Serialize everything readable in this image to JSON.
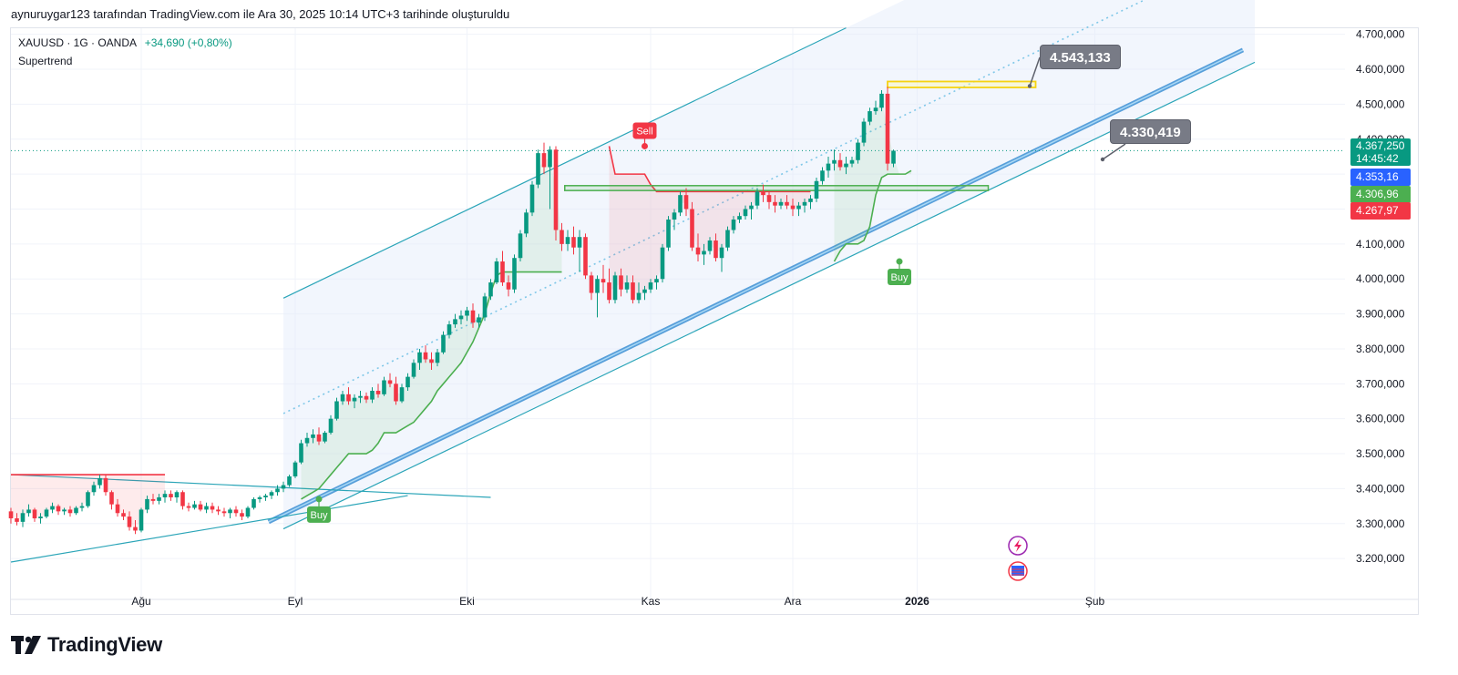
{
  "attribution": "aynuruygar123 tarafından TradingView.com ile Ara 30, 2025 10:14 UTC+3 tarihinde oluşturuldu",
  "legend": {
    "symbol": "XAUUSD · 1G · OANDA",
    "change": "+34,690 (+0,80%)",
    "indicator": "Supertrend"
  },
  "brand": "TradingView",
  "colors": {
    "up": "#089981",
    "down": "#f23645",
    "supertrend_up": "#4caf50",
    "supertrend_down": "#f23645",
    "channel": "#2ba5b8",
    "support_band": "#3d8fd4",
    "resistance_box": "#f5d312",
    "level_box": "#4caf50",
    "callout": "#787b86",
    "last_price_bg": "#089981",
    "tag_blue": "#2962ff",
    "tag_green": "#4caf50",
    "tag_red": "#f23645"
  },
  "price_tags": {
    "last_price": "4.367,250",
    "countdown": "14:45:42",
    "tag_blue": "4.353,16",
    "tag_green": "4.306,96",
    "tag_red": "4.267,97"
  },
  "callouts": {
    "upper": "4.543,133",
    "lower": "4.330,419"
  },
  "signals": {
    "buy1": "Buy",
    "sell": "Sell",
    "buy2": "Buy"
  },
  "chart_data": {
    "type": "candlestick",
    "title": "",
    "xlabel": "",
    "ylabel": "",
    "ylim": [
      3130000,
      4720000
    ],
    "y_ticks": [
      {
        "value": 3200000,
        "label": "3.200,000"
      },
      {
        "value": 3300000,
        "label": "3.300,000"
      },
      {
        "value": 3400000,
        "label": "3.400,000"
      },
      {
        "value": 3500000,
        "label": "3.500,000"
      },
      {
        "value": 3600000,
        "label": "3.600,000"
      },
      {
        "value": 3700000,
        "label": "3.700,000"
      },
      {
        "value": 3800000,
        "label": "3.800,000"
      },
      {
        "value": 3900000,
        "label": "3.900,000"
      },
      {
        "value": 4000000,
        "label": "4.000,000"
      },
      {
        "value": 4100000,
        "label": "4.100,000"
      },
      {
        "value": 4200000,
        "label": "4.200,000"
      },
      {
        "value": 4300000,
        "label": "4.300,000"
      },
      {
        "value": 4400000,
        "label": "4.400,000"
      },
      {
        "value": 4500000,
        "label": "4.500,000"
      },
      {
        "value": 4600000,
        "label": "4.600,000"
      },
      {
        "value": 4700000,
        "label": "4.700,000"
      }
    ],
    "x_ticks": [
      {
        "index": 22,
        "label": "Ağu",
        "bold": false
      },
      {
        "index": 48,
        "label": "Eyl",
        "bold": false
      },
      {
        "index": 77,
        "label": "Eki",
        "bold": false
      },
      {
        "index": 108,
        "label": "Kas",
        "bold": false
      },
      {
        "index": 132,
        "label": "Ara",
        "bold": false
      },
      {
        "index": 153,
        "label": "2026",
        "bold": true
      },
      {
        "index": 183,
        "label": "Şub",
        "bold": false
      }
    ],
    "candles": [
      [
        3335,
        3345,
        3300,
        3315
      ],
      [
        3315,
        3330,
        3295,
        3305
      ],
      [
        3305,
        3340,
        3290,
        3330
      ],
      [
        3330,
        3355,
        3320,
        3340
      ],
      [
        3340,
        3345,
        3305,
        3315
      ],
      [
        3315,
        3330,
        3300,
        3320
      ],
      [
        3320,
        3345,
        3315,
        3340
      ],
      [
        3340,
        3360,
        3330,
        3350
      ],
      [
        3350,
        3355,
        3325,
        3335
      ],
      [
        3335,
        3345,
        3325,
        3340
      ],
      [
        3340,
        3350,
        3320,
        3330
      ],
      [
        3330,
        3350,
        3325,
        3345
      ],
      [
        3345,
        3360,
        3335,
        3350
      ],
      [
        3350,
        3395,
        3345,
        3390
      ],
      [
        3390,
        3420,
        3380,
        3410
      ],
      [
        3410,
        3440,
        3400,
        3430
      ],
      [
        3430,
        3440,
        3380,
        3390
      ],
      [
        3390,
        3395,
        3340,
        3355
      ],
      [
        3355,
        3370,
        3320,
        3330
      ],
      [
        3330,
        3340,
        3310,
        3320
      ],
      [
        3320,
        3335,
        3280,
        3290
      ],
      [
        3290,
        3310,
        3270,
        3280
      ],
      [
        3280,
        3345,
        3275,
        3340
      ],
      [
        3340,
        3380,
        3330,
        3370
      ],
      [
        3370,
        3385,
        3355,
        3365
      ],
      [
        3365,
        3385,
        3355,
        3375
      ],
      [
        3375,
        3395,
        3360,
        3385
      ],
      [
        3385,
        3395,
        3365,
        3375
      ],
      [
        3375,
        3395,
        3360,
        3390
      ],
      [
        3390,
        3395,
        3340,
        3350
      ],
      [
        3350,
        3360,
        3335,
        3345
      ],
      [
        3345,
        3365,
        3340,
        3355
      ],
      [
        3355,
        3365,
        3335,
        3340
      ],
      [
        3340,
        3360,
        3330,
        3350
      ],
      [
        3350,
        3360,
        3330,
        3340
      ],
      [
        3340,
        3350,
        3325,
        3335
      ],
      [
        3335,
        3345,
        3320,
        3330
      ],
      [
        3330,
        3345,
        3315,
        3340
      ],
      [
        3340,
        3350,
        3320,
        3330
      ],
      [
        3330,
        3340,
        3310,
        3320
      ],
      [
        3320,
        3350,
        3315,
        3345
      ],
      [
        3345,
        3375,
        3340,
        3370
      ],
      [
        3370,
        3380,
        3360,
        3375
      ],
      [
        3375,
        3385,
        3365,
        3380
      ],
      [
        3380,
        3395,
        3370,
        3390
      ],
      [
        3390,
        3410,
        3380,
        3400
      ],
      [
        3400,
        3420,
        3390,
        3410
      ],
      [
        3410,
        3440,
        3405,
        3435
      ],
      [
        3435,
        3480,
        3430,
        3475
      ],
      [
        3475,
        3540,
        3470,
        3530
      ],
      [
        3530,
        3560,
        3520,
        3545
      ],
      [
        3545,
        3570,
        3530,
        3555
      ],
      [
        3555,
        3575,
        3525,
        3535
      ],
      [
        3535,
        3565,
        3530,
        3560
      ],
      [
        3560,
        3610,
        3555,
        3600
      ],
      [
        3600,
        3660,
        3595,
        3650
      ],
      [
        3650,
        3680,
        3640,
        3670
      ],
      [
        3670,
        3690,
        3640,
        3650
      ],
      [
        3650,
        3670,
        3630,
        3660
      ],
      [
        3660,
        3680,
        3645,
        3665
      ],
      [
        3665,
        3675,
        3645,
        3655
      ],
      [
        3655,
        3690,
        3645,
        3680
      ],
      [
        3680,
        3700,
        3660,
        3670
      ],
      [
        3670,
        3720,
        3665,
        3710
      ],
      [
        3710,
        3730,
        3690,
        3700
      ],
      [
        3700,
        3720,
        3640,
        3650
      ],
      [
        3650,
        3700,
        3645,
        3690
      ],
      [
        3690,
        3730,
        3680,
        3720
      ],
      [
        3720,
        3770,
        3715,
        3760
      ],
      [
        3760,
        3800,
        3740,
        3790
      ],
      [
        3790,
        3810,
        3760,
        3770
      ],
      [
        3770,
        3790,
        3740,
        3760
      ],
      [
        3760,
        3800,
        3750,
        3790
      ],
      [
        3790,
        3850,
        3785,
        3840
      ],
      [
        3840,
        3880,
        3830,
        3870
      ],
      [
        3870,
        3900,
        3860,
        3885
      ],
      [
        3885,
        3910,
        3870,
        3895
      ],
      [
        3895,
        3920,
        3880,
        3910
      ],
      [
        3910,
        3930,
        3860,
        3875
      ],
      [
        3875,
        3900,
        3860,
        3890
      ],
      [
        3890,
        3960,
        3880,
        3950
      ],
      [
        3950,
        4000,
        3940,
        3990
      ],
      [
        3990,
        4060,
        3985,
        4050
      ],
      [
        4050,
        4080,
        3980,
        3990
      ],
      [
        3990,
        4010,
        3950,
        3970
      ],
      [
        3970,
        4070,
        3960,
        4060
      ],
      [
        4060,
        4140,
        4050,
        4130
      ],
      [
        4130,
        4200,
        4120,
        4190
      ],
      [
        4190,
        4280,
        4180,
        4270
      ],
      [
        4270,
        4370,
        4260,
        4360
      ],
      [
        4360,
        4390,
        4300,
        4320
      ],
      [
        4320,
        4380,
        4200,
        4370
      ],
      [
        4370,
        4380,
        4110,
        4140
      ],
      [
        4140,
        4160,
        4080,
        4100
      ],
      [
        4100,
        4140,
        4080,
        4120
      ],
      [
        4120,
        4150,
        4070,
        4090
      ],
      [
        4090,
        4140,
        4020,
        4120
      ],
      [
        4120,
        4130,
        4000,
        4010
      ],
      [
        4010,
        4020,
        3940,
        3960
      ],
      [
        3960,
        4010,
        3890,
        4000
      ],
      [
        4000,
        4040,
        3960,
        3990
      ],
      [
        3990,
        4030,
        3930,
        3940
      ],
      [
        3940,
        4020,
        3930,
        4010
      ],
      [
        4010,
        4030,
        3950,
        3970
      ],
      [
        3970,
        4010,
        3960,
        3990
      ],
      [
        3990,
        4010,
        3930,
        3940
      ],
      [
        3940,
        3990,
        3930,
        3960
      ],
      [
        3960,
        3980,
        3940,
        3970
      ],
      [
        3970,
        4000,
        3960,
        3990
      ],
      [
        3990,
        4010,
        3970,
        4000
      ],
      [
        4000,
        4100,
        3990,
        4090
      ],
      [
        4090,
        4180,
        4080,
        4170
      ],
      [
        4170,
        4200,
        4140,
        4190
      ],
      [
        4190,
        4250,
        4180,
        4240
      ],
      [
        4240,
        4260,
        4180,
        4200
      ],
      [
        4200,
        4220,
        4080,
        4090
      ],
      [
        4090,
        4130,
        4050,
        4070
      ],
      [
        4070,
        4100,
        4040,
        4080
      ],
      [
        4080,
        4120,
        4070,
        4110
      ],
      [
        4110,
        4130,
        4050,
        4060
      ],
      [
        4060,
        4100,
        4020,
        4090
      ],
      [
        4090,
        4150,
        4080,
        4140
      ],
      [
        4140,
        4180,
        4130,
        4170
      ],
      [
        4170,
        4190,
        4160,
        4180
      ],
      [
        4180,
        4210,
        4170,
        4200
      ],
      [
        4200,
        4220,
        4170,
        4210
      ],
      [
        4210,
        4260,
        4200,
        4250
      ],
      [
        4250,
        4270,
        4220,
        4240
      ],
      [
        4240,
        4250,
        4200,
        4220
      ],
      [
        4220,
        4240,
        4190,
        4210
      ],
      [
        4210,
        4230,
        4200,
        4220
      ],
      [
        4220,
        4240,
        4200,
        4210
      ],
      [
        4210,
        4230,
        4180,
        4200
      ],
      [
        4200,
        4220,
        4180,
        4210
      ],
      [
        4210,
        4230,
        4190,
        4220
      ],
      [
        4220,
        4240,
        4200,
        4230
      ],
      [
        4230,
        4290,
        4220,
        4280
      ],
      [
        4280,
        4320,
        4270,
        4310
      ],
      [
        4310,
        4350,
        4290,
        4330
      ],
      [
        4330,
        4370,
        4310,
        4340
      ],
      [
        4340,
        4360,
        4310,
        4320
      ],
      [
        4320,
        4350,
        4300,
        4330
      ],
      [
        4330,
        4350,
        4320,
        4340
      ],
      [
        4340,
        4400,
        4330,
        4390
      ],
      [
        4390,
        4460,
        4380,
        4450
      ],
      [
        4450,
        4490,
        4440,
        4480
      ],
      [
        4480,
        4510,
        4470,
        4490
      ],
      [
        4490,
        4540,
        4480,
        4530
      ],
      [
        4530,
        4550,
        4310,
        4330
      ],
      [
        4330,
        4370,
        4320,
        4367
      ]
    ],
    "supertrend": {
      "up_1": [
        3370,
        3380,
        3390,
        3400,
        3420,
        3440,
        3460,
        3480,
        3500,
        3500,
        3500,
        3500,
        3510,
        3530,
        3560,
        3560,
        3560,
        3570,
        3580,
        3590,
        3610,
        3630,
        3650,
        3680,
        3700,
        3720,
        3740,
        3760,
        3790,
        3820,
        3860,
        3900,
        3960,
        4010,
        4020,
        4020,
        4020,
        4020,
        4020,
        4020,
        4020,
        4020,
        4020,
        4020,
        4020
      ],
      "up_1_start": 49,
      "down_1": [
        3440,
        3440,
        3440,
        3440,
        3440,
        3440,
        3440,
        3440,
        3440,
        3440,
        3440,
        3440,
        3440,
        3440,
        3440,
        3440,
        3440,
        3440,
        3440,
        3440,
        3440,
        3440,
        3440,
        3440,
        3440,
        3440,
        3440
      ],
      "down_1_start": 20,
      "down_2": [
        4380,
        4300,
        4300,
        4300,
        4300,
        4300,
        4300,
        4270,
        4250,
        4250,
        4250,
        4250,
        4250,
        4250,
        4250,
        4250,
        4250,
        4250,
        4250,
        4250,
        4250,
        4250,
        4250,
        4250,
        4250,
        4250,
        4250,
        4250,
        4250,
        4250,
        4250,
        4250,
        4250,
        4250,
        4250
      ],
      "down_2_start": 101,
      "up_2": [
        4050,
        4080,
        4100,
        4100,
        4100,
        4110,
        4150,
        4240,
        4290,
        4300,
        4300,
        4300,
        4300,
        4310
      ],
      "up_2_start": 139
    }
  }
}
